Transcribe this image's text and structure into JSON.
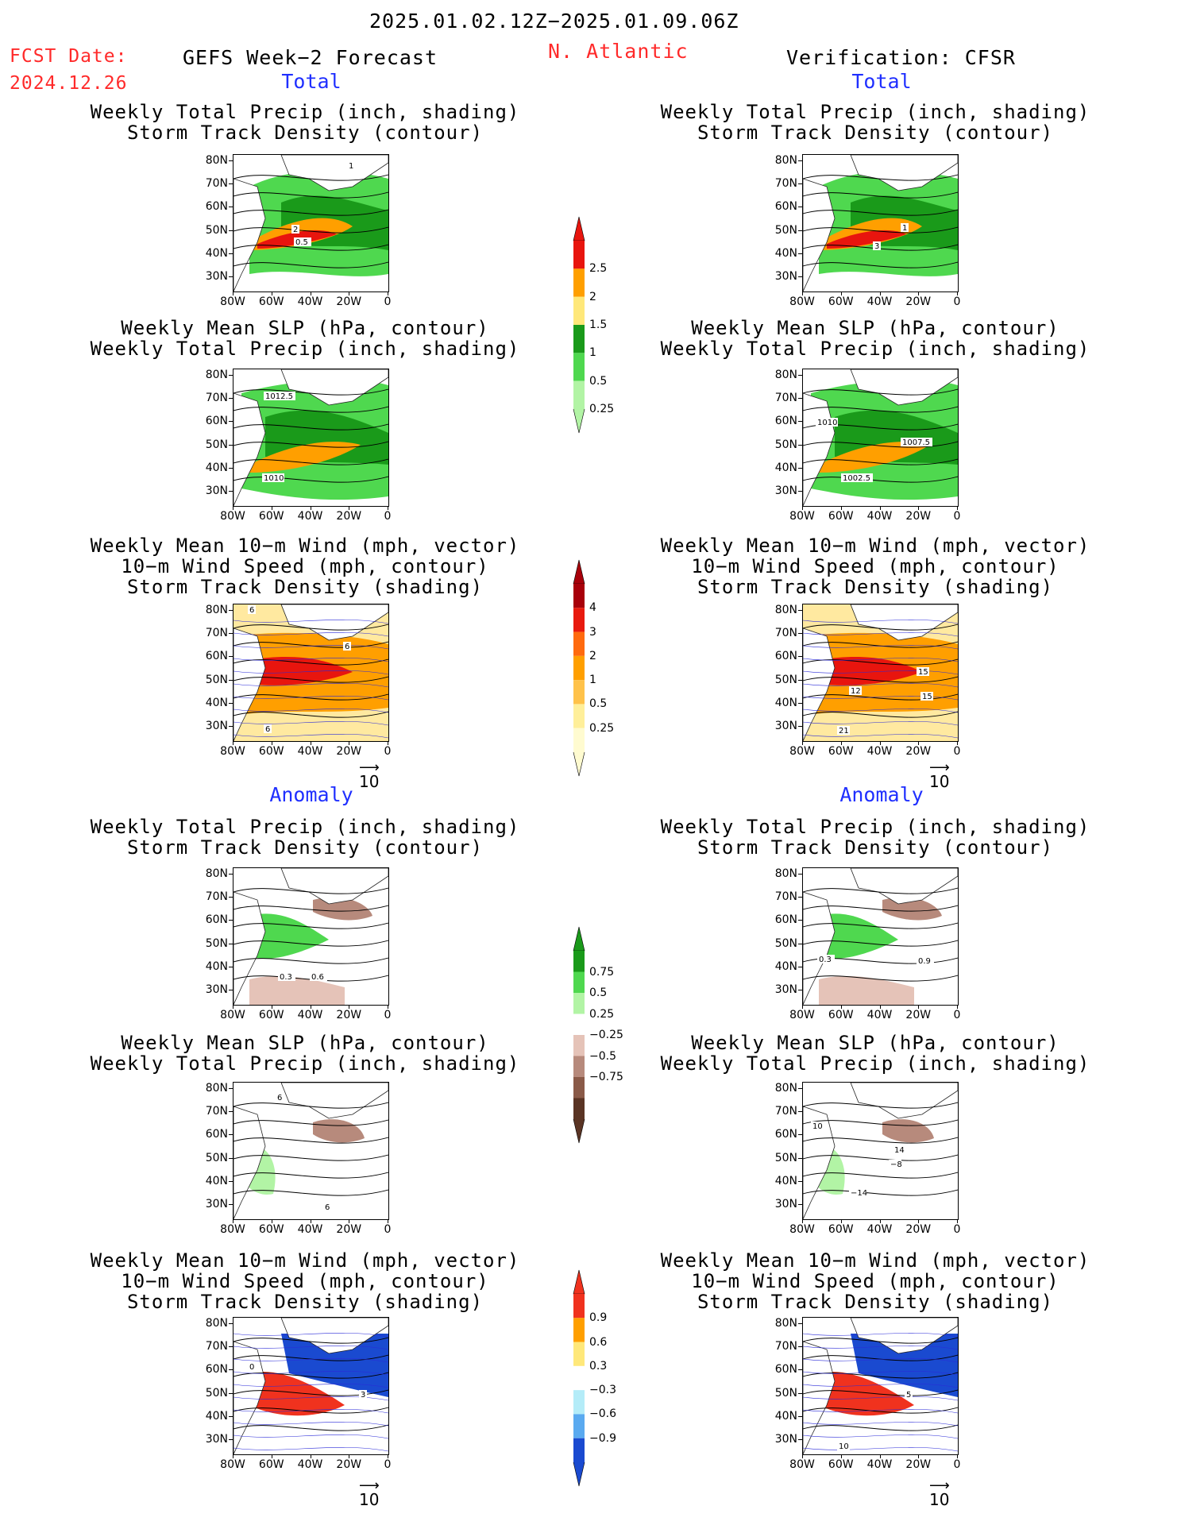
{
  "header": {
    "period": "2025.01.02.12Z−2025.01.09.06Z",
    "fcst_label": "FCST Date:",
    "fcst_date": "2024.12.26",
    "model": "GEFS Week−2 Forecast",
    "region": "N. Atlantic",
    "verification": "Verification: CFSR"
  },
  "sections": {
    "total": "Total",
    "anomaly": "Anomaly"
  },
  "titles": {
    "precip_track": [
      "Weekly Total Precip (inch, shading)",
      "Storm Track Density (contour)"
    ],
    "slp_precip": [
      "Weekly Mean SLP (hPa, contour)",
      "Weekly Total Precip (inch, shading)"
    ],
    "wind_track": [
      "Weekly Mean 10−m Wind (mph, vector)",
      "10−m Wind Speed (mph, contour)",
      "Storm Track Density (shading)"
    ]
  },
  "axes": {
    "lat_labels": [
      "80N",
      "70N",
      "60N",
      "50N",
      "40N",
      "30N"
    ],
    "lon_labels": [
      "80W",
      "60W",
      "40W",
      "20W",
      "0"
    ]
  },
  "vector_ref": "10",
  "colorbars": {
    "precip_total": {
      "labels": [
        "2.5",
        "2",
        "1.5",
        "1",
        "0.5",
        "0.25"
      ],
      "colors": [
        "#e8150e",
        "#ff9f00",
        "#ffe87a",
        "#1a9a1a",
        "#4fd84f",
        "#b2f4a5"
      ]
    },
    "track_total": {
      "labels": [
        "4",
        "3",
        "2",
        "1",
        "0.5",
        "0.25"
      ],
      "colors": [
        "#a8000a",
        "#e81a0e",
        "#ff6a0e",
        "#ff9f00",
        "#ffc24a",
        "#ffef9a",
        "#fffbd0"
      ]
    },
    "precip_anom": {
      "labels": [
        "0.75",
        "0.5",
        "0.25",
        "−0.25",
        "−0.5",
        "−0.75"
      ],
      "colors": [
        "#1a9a1a",
        "#4fd84f",
        "#b2f4a5",
        "#ffffff",
        "#e5c3b8",
        "#b78a7c",
        "#8a5a48",
        "#5a3424"
      ]
    },
    "track_anom": {
      "labels": [
        "0.9",
        "0.6",
        "0.3",
        "−0.3",
        "−0.6",
        "−0.9"
      ],
      "colors": [
        "#f0321e",
        "#ff9f00",
        "#ffe87a",
        "#ffffff",
        "#b4ecf8",
        "#5aaaf0",
        "#1a4ad0"
      ]
    }
  },
  "panels": [
    {
      "id": "fcst-precip-track-total",
      "labels": [
        "1",
        "2",
        "0.5"
      ]
    },
    {
      "id": "verif-precip-track-total",
      "labels": [
        "1",
        "3"
      ]
    },
    {
      "id": "fcst-slp-precip-total",
      "labels": [
        "1012.5",
        "1010"
      ]
    },
    {
      "id": "verif-slp-precip-total",
      "labels": [
        "1010",
        "1007.5",
        "1002.5"
      ]
    },
    {
      "id": "fcst-wind-track-total",
      "labels": [
        "6",
        "6",
        "6"
      ]
    },
    {
      "id": "verif-wind-track-total",
      "labels": [
        "15",
        "12",
        "15",
        "21"
      ]
    },
    {
      "id": "fcst-precip-track-anom",
      "labels": [
        "0.3",
        "0.6"
      ]
    },
    {
      "id": "verif-precip-track-anom",
      "labels": [
        "0.3",
        "0.9"
      ]
    },
    {
      "id": "fcst-slp-precip-anom",
      "labels": [
        "6",
        "6"
      ]
    },
    {
      "id": "verif-slp-precip-anom",
      "labels": [
        "10",
        "14",
        "−8",
        "−14"
      ]
    },
    {
      "id": "fcst-wind-track-anom",
      "labels": [
        "0",
        "3"
      ]
    },
    {
      "id": "verif-wind-track-anom",
      "labels": [
        "5",
        "10"
      ]
    }
  ]
}
